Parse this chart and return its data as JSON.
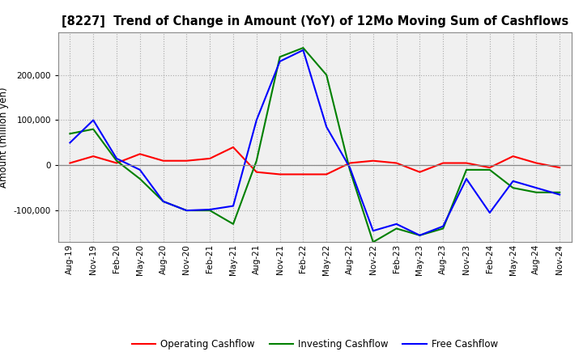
{
  "title": "[8227]  Trend of Change in Amount (YoY) of 12Mo Moving Sum of Cashflows",
  "ylabel": "Amount (million yen)",
  "x_labels": [
    "Aug-19",
    "Nov-19",
    "Feb-20",
    "May-20",
    "Aug-20",
    "Nov-20",
    "Feb-21",
    "May-21",
    "Aug-21",
    "Nov-21",
    "Feb-22",
    "May-22",
    "Aug-22",
    "Nov-22",
    "Feb-23",
    "May-23",
    "Aug-23",
    "Nov-23",
    "Feb-24",
    "May-24",
    "Aug-24",
    "Nov-24"
  ],
  "operating": [
    5000,
    20000,
    5000,
    25000,
    10000,
    10000,
    15000,
    40000,
    -15000,
    -20000,
    -20000,
    -20000,
    5000,
    10000,
    5000,
    -15000,
    5000,
    5000,
    -5000,
    20000,
    5000,
    -5000
  ],
  "investing": [
    70000,
    80000,
    10000,
    -30000,
    -80000,
    -100000,
    -100000,
    -130000,
    10000,
    240000,
    260000,
    200000,
    -10000,
    -170000,
    -140000,
    -155000,
    -140000,
    -10000,
    -10000,
    -50000,
    -60000,
    -60000
  ],
  "free": [
    50000,
    100000,
    15000,
    -10000,
    -80000,
    -100000,
    -98000,
    -90000,
    100000,
    230000,
    255000,
    85000,
    -5000,
    -145000,
    -130000,
    -155000,
    -135000,
    -30000,
    -105000,
    -35000,
    -50000,
    -65000
  ],
  "ylim": [
    -170000,
    295000
  ],
  "yticks": [
    -100000,
    0,
    100000,
    200000
  ],
  "operating_color": "#ff0000",
  "investing_color": "#008000",
  "free_color": "#0000ff",
  "background_color": "#ffffff",
  "plot_bg_color": "#f0f0f0",
  "grid_color": "#aaaaaa",
  "title_fontsize": 10.5,
  "ylabel_fontsize": 8.5,
  "tick_fontsize": 7.5,
  "legend_fontsize": 8.5
}
